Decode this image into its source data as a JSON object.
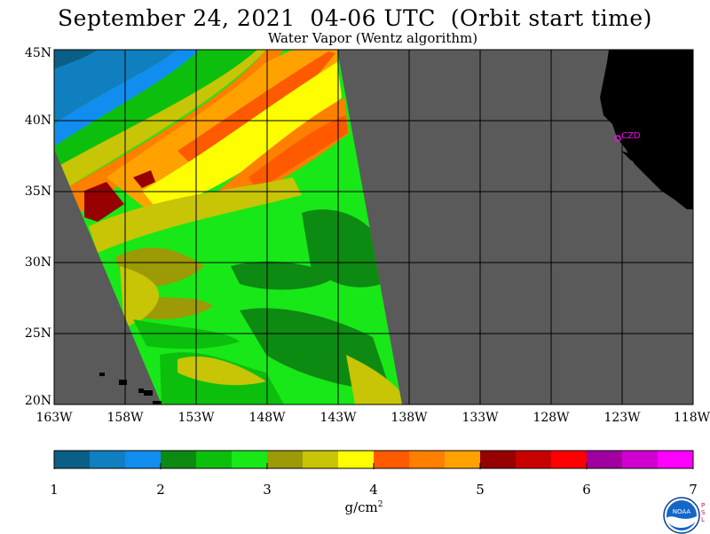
{
  "title": "September 24, 2021  04-06 UTC  (Orbit start time)",
  "subtitle": "Water Vapor (Wentz algorithm)",
  "lat_labels": [
    "45N",
    "40N",
    "35N",
    "30N",
    "25N",
    "20N"
  ],
  "lon_labels": [
    "163W",
    "158W",
    "153W",
    "148W",
    "143W",
    "138W",
    "133W",
    "128W",
    "123W",
    "118W"
  ],
  "station_label": "CZD",
  "colorbar": {
    "colors": [
      "#0a5f86",
      "#0f7fc0",
      "#118df0",
      "#0d8a12",
      "#0cbf0c",
      "#18e818",
      "#9c9a06",
      "#c8c406",
      "#fefe00",
      "#ff5a00",
      "#ff7f00",
      "#ffa200",
      "#960000",
      "#c80000",
      "#ff0000",
      "#a000a0",
      "#d000d0",
      "#ff00ff"
    ],
    "tick_labels": [
      "1",
      "2",
      "3",
      "4",
      "5",
      "6",
      "7"
    ],
    "unit": "g/cm",
    "unit_sup": "2"
  },
  "logo": {
    "text": "NOAA",
    "side_text": [
      "P",
      "S",
      "L"
    ]
  },
  "palette": {
    "land": "#000000",
    "no_data": "#5a5a5a",
    "grid": "#000000",
    "station": "#ff00ff"
  }
}
